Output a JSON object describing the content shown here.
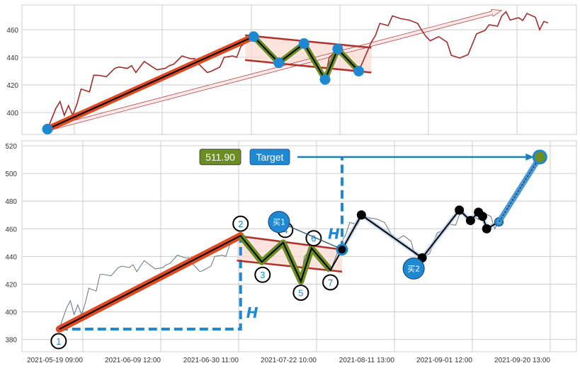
{
  "chart_data": [
    {
      "type": "line",
      "panel": "top",
      "yticks": [
        400,
        420,
        440,
        460
      ],
      "ylim": [
        384,
        478
      ],
      "grid": true,
      "colors": {
        "price": "#a52a2a",
        "pole": "#e04a20",
        "zigzag": "#6b8e23",
        "marker": "#1e88d0",
        "wedge_line": "#b0302a",
        "wedge_fill": "#f8d8cf"
      },
      "pattern_points": [
        [
          "2021-05-13",
          388
        ],
        [
          "2021-07-01",
          455
        ],
        [
          "2021-07-07",
          436
        ],
        [
          "2021-07-13",
          450
        ],
        [
          "2021-07-18",
          424
        ],
        [
          "2021-07-21",
          446
        ],
        [
          "2021-07-26",
          430
        ]
      ],
      "wedge_upper": [
        [
          "2021-06-29",
          456
        ],
        [
          "2021-07-29",
          447
        ]
      ],
      "wedge_lower": [
        [
          "2021-06-29",
          438
        ],
        [
          "2021-07-29",
          429
        ]
      ],
      "trend_arrow": [
        [
          "2021-05-13",
          388
        ],
        [
          "2021-08-29",
          474
        ]
      ]
    },
    {
      "type": "line",
      "panel": "bottom",
      "yticks": [
        380,
        400,
        420,
        440,
        460,
        480,
        500,
        520
      ],
      "ylim": [
        373,
        524
      ],
      "grid": true,
      "xticks": [
        "2021-05-19 09:00",
        "2021-06-09 12:00",
        "2021-06-30 11:00",
        "2021-07-22 10:00",
        "2021-08-11 13:00",
        "2021-09-01 12:00",
        "2021-09-20 13:00"
      ],
      "colors": {
        "price": "#56657a",
        "pole": "#e04a20",
        "zigzag": "#6b8e23",
        "marker": "#1e88d0",
        "path": "#000000",
        "target_box": "#6b8e23",
        "target_label_box": "#1e88d0"
      },
      "pattern_points": [
        {
          "label": "1",
          "date": "2021-05-13",
          "value": 387.5,
          "pos": "below"
        },
        {
          "label": "2",
          "date": "2021-07-01",
          "value": 455,
          "pos": "above"
        },
        {
          "label": "3",
          "date": "2021-07-07",
          "value": 436,
          "pos": "below"
        },
        {
          "label": "4",
          "date": "2021-07-13",
          "value": 450,
          "pos": "above"
        },
        {
          "label": "5",
          "date": "2021-07-18",
          "value": 422,
          "pos": "below"
        },
        {
          "label": "6",
          "date": "2021-07-21",
          "value": 446,
          "pos": "above"
        },
        {
          "label": "7",
          "date": "2021-07-26",
          "value": 430,
          "pos": "below"
        }
      ],
      "wedge_upper": [
        [
          "2021-06-30",
          455
        ],
        [
          "2021-07-29",
          445
        ]
      ],
      "wedge_lower": [
        [
          "2021-06-30",
          437
        ],
        [
          "2021-07-29",
          429
        ]
      ],
      "breakout": [
        "2021-07-29",
        445
      ],
      "path_points": [
        [
          "2021-07-29",
          445
        ],
        [
          "2021-08-03",
          470
        ],
        [
          "2021-08-19",
          439
        ],
        [
          "2021-08-29",
          473.5
        ],
        [
          "2021-09-01",
          466
        ],
        [
          "2021-09-03",
          472
        ],
        [
          "2021-09-04",
          469
        ],
        [
          "2021-09-05",
          460
        ],
        [
          "2021-09-08",
          465
        ]
      ],
      "target_point": [
        "2021-09-18",
        511.9
      ],
      "height_label": "H",
      "target_value_label": "511.90",
      "target_label": "Target",
      "buy_signals": [
        {
          "label": "买1",
          "date": "2021-07-29",
          "value": 445
        },
        {
          "label": "买2",
          "date": "2021-08-19",
          "value": 439
        }
      ]
    }
  ],
  "price_series": [
    [
      "2021-05-13",
      388
    ],
    [
      "2021-05-15",
      403
    ],
    [
      "2021-05-16",
      408
    ],
    [
      "2021-05-17",
      398
    ],
    [
      "2021-05-18",
      405
    ],
    [
      "2021-05-19",
      398
    ],
    [
      "2021-05-20",
      406
    ],
    [
      "2021-05-21",
      417
    ],
    [
      "2021-05-23",
      415
    ],
    [
      "2021-05-24",
      427
    ],
    [
      "2021-05-25",
      427
    ],
    [
      "2021-05-27",
      426
    ],
    [
      "2021-05-29",
      432
    ],
    [
      "2021-05-30",
      433
    ],
    [
      "2021-06-01",
      432
    ],
    [
      "2021-06-02",
      434
    ],
    [
      "2021-06-03",
      429
    ],
    [
      "2021-06-05",
      437
    ],
    [
      "2021-06-07",
      433
    ],
    [
      "2021-06-08",
      431
    ],
    [
      "2021-06-10",
      432
    ],
    [
      "2021-06-11",
      434
    ],
    [
      "2021-06-12",
      435
    ],
    [
      "2021-06-14",
      441
    ],
    [
      "2021-06-16",
      439
    ],
    [
      "2021-06-17",
      439
    ],
    [
      "2021-06-18",
      435
    ],
    [
      "2021-06-20",
      429
    ],
    [
      "2021-06-21",
      430
    ],
    [
      "2021-06-23",
      433
    ],
    [
      "2021-06-24",
      440
    ],
    [
      "2021-06-26",
      441
    ],
    [
      "2021-06-27",
      440
    ],
    [
      "2021-06-28",
      448
    ],
    [
      "2021-07-01",
      455
    ],
    [
      "2021-07-04",
      445
    ],
    [
      "2021-07-07",
      436
    ],
    [
      "2021-07-10",
      444
    ],
    [
      "2021-07-13",
      450
    ],
    [
      "2021-07-15",
      437
    ],
    [
      "2021-07-18",
      424
    ],
    [
      "2021-07-19",
      440
    ],
    [
      "2021-07-21",
      446
    ],
    [
      "2021-07-24",
      438
    ],
    [
      "2021-07-26",
      430
    ],
    [
      "2021-07-29",
      451
    ],
    [
      "2021-07-30",
      456
    ],
    [
      "2021-07-31",
      464.6
    ],
    [
      "2021-08-02",
      463
    ],
    [
      "2021-08-03",
      470
    ],
    [
      "2021-08-05",
      468
    ],
    [
      "2021-08-07",
      467
    ],
    [
      "2021-08-09",
      464.6
    ],
    [
      "2021-08-10",
      459.5
    ],
    [
      "2021-08-11",
      455
    ],
    [
      "2021-08-12",
      452
    ],
    [
      "2021-08-14",
      455
    ],
    [
      "2021-08-16",
      451
    ],
    [
      "2021-08-17",
      441.5
    ],
    [
      "2021-08-19",
      439.5
    ],
    [
      "2021-08-21",
      442
    ],
    [
      "2021-08-23",
      457
    ],
    [
      "2021-08-25",
      459.5
    ],
    [
      "2021-08-26",
      463.6
    ],
    [
      "2021-08-28",
      462.6
    ],
    [
      "2021-08-29",
      470
    ],
    [
      "2021-08-30",
      473
    ],
    [
      "2021-08-31",
      467
    ],
    [
      "2021-09-02",
      468.7
    ],
    [
      "2021-09-03",
      466.7
    ],
    [
      "2021-09-04",
      471.8
    ],
    [
      "2021-09-06",
      469
    ],
    [
      "2021-09-07",
      460
    ],
    [
      "2021-09-08",
      466
    ],
    [
      "2021-09-09",
      465
    ]
  ]
}
